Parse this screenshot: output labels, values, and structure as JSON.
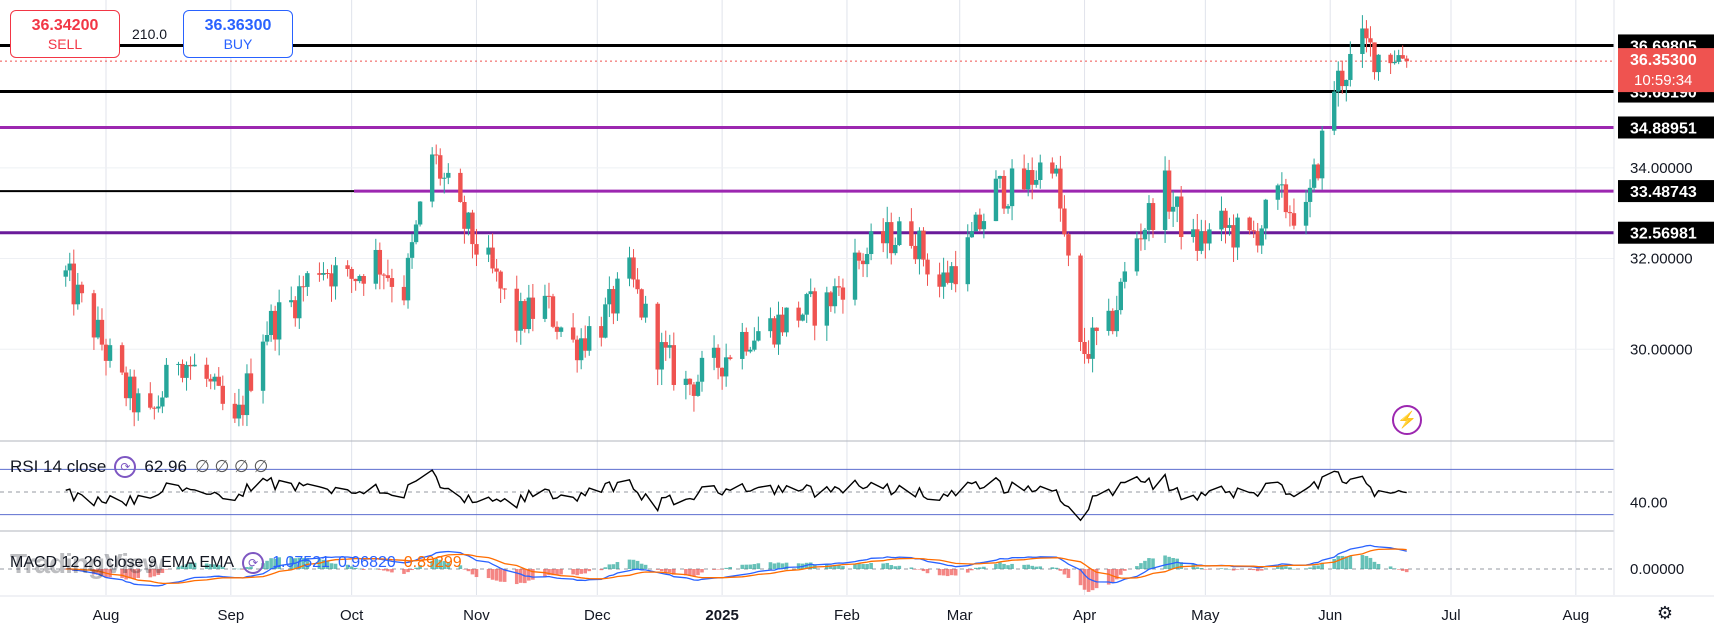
{
  "trade": {
    "sell_price": "36.34200",
    "sell_label": "SELL",
    "buy_price": "36.36300",
    "buy_label": "BUY",
    "spread": "210.0"
  },
  "rsi": {
    "label": "RSI 14 close",
    "value": "62.96",
    "extra": "∅ ∅ ∅ ∅",
    "axis_label": "40.00"
  },
  "macd": {
    "label": "MACD 12 26 close 9 EMA EMA",
    "values": [
      "1.07521",
      "0.96820",
      "0.89299"
    ],
    "value_colors": [
      "#2962ff",
      "#2962ff",
      "#ff6d00"
    ],
    "axis_label": "0.00000"
  },
  "watermark": "TradingView",
  "icons": {
    "indicator_settings": "gear-icon",
    "alert": "bolt-icon",
    "chart_settings": "settings-icon"
  },
  "colors": {
    "up": "#26a69a",
    "down": "#ef5350",
    "black_line": "#000000",
    "purple_line": "#9c27b0",
    "current_price_bg": "#ef5350",
    "rsi_line": "#000000",
    "macd_line": "#2962ff",
    "signal_line": "#ff6d00"
  },
  "chart_data": {
    "type": "candlestick",
    "x_labels": [
      "Aug",
      "Sep",
      "Oct",
      "Nov",
      "Dec",
      "2025",
      "Feb",
      "Mar",
      "Apr",
      "May",
      "Jun",
      "Jul",
      "Aug"
    ],
    "x_label_dates": [
      "2024-08-01",
      "2024-09-01",
      "2024-10-01",
      "2024-11-01",
      "2024-12-01",
      "2025-01-01",
      "2025-02-01",
      "2025-03-01",
      "2025-04-01",
      "2025-05-01",
      "2025-06-01",
      "2025-07-01",
      "2025-08-01"
    ],
    "y_ticks": [
      "34.00000",
      "32.00000",
      "30.00000"
    ],
    "ylim": [
      28.0,
      37.7
    ],
    "horizontal_levels": [
      {
        "label": "36.69805",
        "value": 36.69805,
        "color": "#000000"
      },
      {
        "label": "35.68190",
        "value": 35.6819,
        "color": "#000000"
      },
      {
        "label": "34.88951",
        "value": 34.88951,
        "color": "#9c27b0"
      },
      {
        "label": "33.48743",
        "value": 33.48743,
        "color": "#9c27b0"
      },
      {
        "label": "32.56981",
        "value": 32.56981,
        "color": "#6a1b9a"
      }
    ],
    "current_price": {
      "label": "36.35300",
      "countdown": "10:59:34",
      "value": 36.353
    },
    "weekly_closes": [
      [
        "2024-07-22",
        31.6
      ],
      [
        "2024-07-29",
        30.5
      ],
      [
        "2024-08-05",
        29.2
      ],
      [
        "2024-08-12",
        28.4
      ],
      [
        "2024-08-19",
        29.9
      ],
      [
        "2024-08-26",
        29.3
      ],
      [
        "2024-09-02",
        28.2
      ],
      [
        "2024-09-09",
        30.4
      ],
      [
        "2024-09-16",
        31.0
      ],
      [
        "2024-09-23",
        31.9
      ],
      [
        "2024-09-30",
        31.5
      ],
      [
        "2024-10-07",
        32.0
      ],
      [
        "2024-10-14",
        31.3
      ],
      [
        "2024-10-21",
        34.3
      ],
      [
        "2024-10-28",
        32.9
      ],
      [
        "2024-11-04",
        31.8
      ],
      [
        "2024-11-11",
        30.6
      ],
      [
        "2024-11-18",
        31.0
      ],
      [
        "2024-11-25",
        30.1
      ],
      [
        "2024-12-02",
        30.6
      ],
      [
        "2024-12-09",
        31.6
      ],
      [
        "2024-12-16",
        30.0
      ],
      [
        "2024-12-23",
        29.2
      ],
      [
        "2024-12-30",
        29.6
      ],
      [
        "2025-01-06",
        30.3
      ],
      [
        "2025-01-13",
        30.5
      ],
      [
        "2025-01-20",
        30.8
      ],
      [
        "2025-01-27",
        31.0
      ],
      [
        "2025-02-03",
        31.9
      ],
      [
        "2025-02-10",
        32.4
      ],
      [
        "2025-02-17",
        32.6
      ],
      [
        "2025-02-24",
        31.4
      ],
      [
        "2025-03-03",
        32.2
      ],
      [
        "2025-03-10",
        33.5
      ],
      [
        "2025-03-17",
        33.6
      ],
      [
        "2025-03-24",
        34.3
      ],
      [
        "2025-03-31",
        29.9
      ],
      [
        "2025-04-07",
        30.4
      ],
      [
        "2025-04-14",
        32.5
      ],
      [
        "2025-04-21",
        33.5
      ],
      [
        "2025-04-28",
        32.3
      ],
      [
        "2025-05-05",
        32.7
      ],
      [
        "2025-05-12",
        32.4
      ],
      [
        "2025-05-19",
        33.3
      ],
      [
        "2025-05-26",
        32.9
      ],
      [
        "2025-06-02",
        35.8
      ],
      [
        "2025-06-09",
        36.7
      ],
      [
        "2025-06-16",
        36.35
      ]
    ]
  }
}
